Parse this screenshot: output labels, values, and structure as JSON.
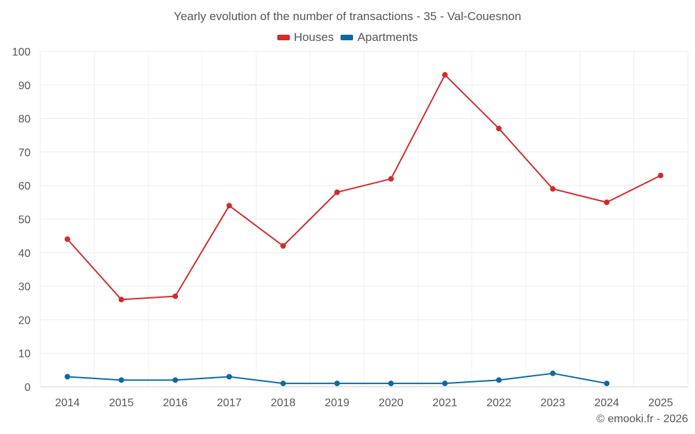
{
  "chart_data": {
    "type": "line",
    "title": "Yearly evolution of the number of transactions - 35 - Val-Couesnon",
    "categories": [
      "2014",
      "2015",
      "2016",
      "2017",
      "2018",
      "2019",
      "2020",
      "2021",
      "2022",
      "2023",
      "2024",
      "2025"
    ],
    "ylim": [
      0,
      100
    ],
    "yticks": [
      0,
      10,
      20,
      30,
      40,
      50,
      60,
      70,
      80,
      90,
      100
    ],
    "grid": true,
    "legend_position": "top-center",
    "series": [
      {
        "name": "Houses",
        "color": "#d32a2a",
        "values": [
          44,
          26,
          27,
          54,
          42,
          58,
          62,
          93,
          77,
          59,
          55,
          63
        ]
      },
      {
        "name": "Apartments",
        "color": "#0b6aa2",
        "values": [
          3,
          2,
          2,
          3,
          1,
          1,
          1,
          1,
          2,
          4,
          1,
          null
        ]
      }
    ]
  },
  "footer": {
    "credit": "© emooki.fr - 2026"
  }
}
